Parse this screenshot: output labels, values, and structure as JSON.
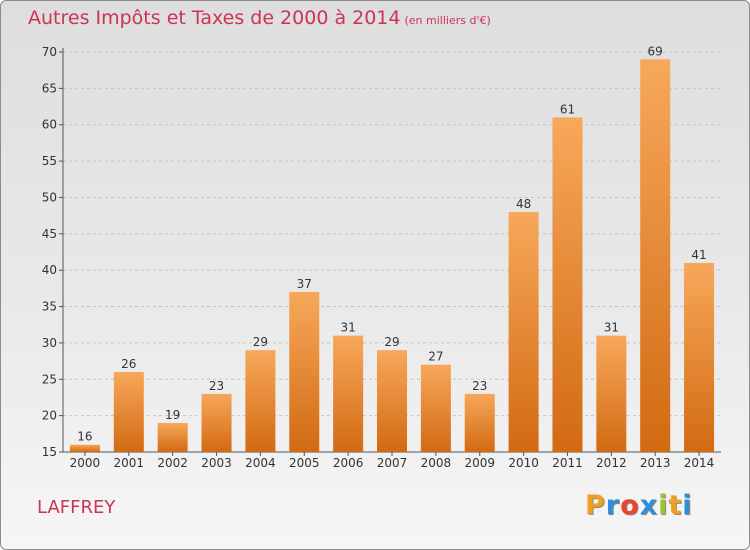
{
  "header": {
    "title": "Autres Impôts et Taxes de 2000 à 2014",
    "unit": "(en milliers d'€)"
  },
  "footer": {
    "place": "LAFFREY",
    "brand_letters": [
      "P",
      "r",
      "o",
      "x",
      "i",
      "t",
      "i"
    ],
    "brand_colors": [
      "#f0a020",
      "#2e8ed8",
      "#e8452c",
      "#2e8ed8",
      "#9bc429",
      "#f0a020",
      "#2e8ed8"
    ]
  },
  "colors": {
    "bar_light": "#f7a85a",
    "bar_dark": "#d26a12",
    "title": "#cc3355"
  },
  "chart_data": {
    "type": "bar",
    "title": "Autres Impôts et Taxes de 2000 à 2014",
    "subtitle": "(en milliers d'€)",
    "xlabel": "",
    "ylabel": "",
    "categories": [
      "2000",
      "2001",
      "2002",
      "2003",
      "2004",
      "2005",
      "2006",
      "2007",
      "2008",
      "2009",
      "2010",
      "2011",
      "2012",
      "2013",
      "2014"
    ],
    "values": [
      16,
      26,
      19,
      23,
      29,
      37,
      31,
      29,
      27,
      23,
      48,
      61,
      31,
      69,
      41
    ],
    "ylim": [
      15,
      70
    ],
    "yticks": [
      15,
      20,
      25,
      30,
      35,
      40,
      45,
      50,
      55,
      60,
      65,
      70
    ],
    "grid": true,
    "legend": "none"
  }
}
